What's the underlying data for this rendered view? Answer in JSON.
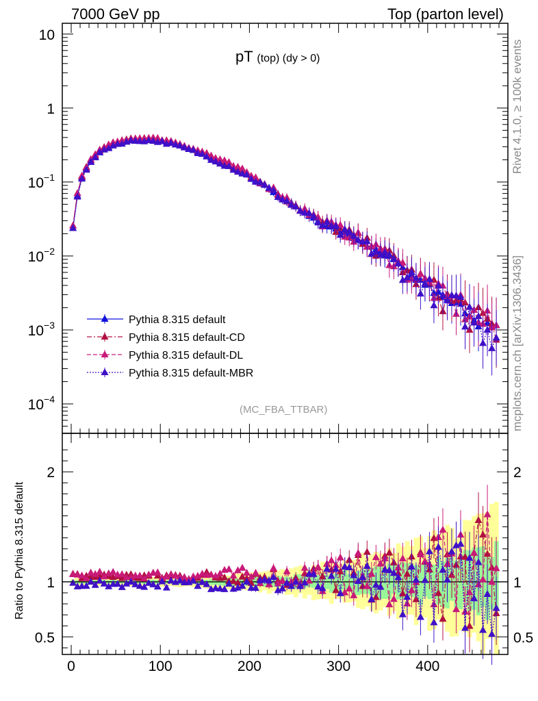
{
  "header": {
    "left": "7000 GeV pp",
    "right": "Top (parton level)"
  },
  "side_labels": {
    "rivet": "Rivet 4.1.0, ≥ 100k events",
    "mcplots": "mcplots.cern.ch [arXiv:1306.3436]"
  },
  "chart_data": {
    "type": "line",
    "title_main": "pT",
    "title_sub": "(top)  (dy > 0)",
    "watermark": "(MC_FBA_TTBAR)",
    "xlabel": "",
    "ylabel": "",
    "ratio_ylabel": "Ratio to Pythia 8.315 default",
    "xlim": [
      -10,
      490
    ],
    "ylim": [
      4e-05,
      14
    ],
    "y_scale": "log",
    "ratio_ylim": [
      0.34,
      2.35
    ],
    "x_ticks": [
      0,
      100,
      200,
      300,
      400
    ],
    "y_ticks": [
      {
        "value": 10,
        "base": "10",
        "exp": ""
      },
      {
        "value": 1,
        "base": "1",
        "exp": ""
      },
      {
        "value": 0.1,
        "base": "10",
        "exp": "−1"
      },
      {
        "value": 0.01,
        "base": "10",
        "exp": "−2"
      },
      {
        "value": 0.001,
        "base": "10",
        "exp": "−3"
      },
      {
        "value": 0.0001,
        "base": "10",
        "exp": "−4"
      }
    ],
    "ratio_ticks": [
      0.5,
      1,
      2
    ],
    "legend_placement": "lower-left",
    "series": [
      {
        "name": "Pythia 8.315 default",
        "color": "#1010dd",
        "dash": "solid",
        "anchors": [
          [
            2,
            0.024
          ],
          [
            7,
            0.066
          ],
          [
            12,
            0.115
          ],
          [
            18,
            0.16
          ],
          [
            25,
            0.21
          ],
          [
            35,
            0.27
          ],
          [
            45,
            0.31
          ],
          [
            55,
            0.34
          ],
          [
            65,
            0.36
          ],
          [
            75,
            0.37
          ],
          [
            85,
            0.37
          ],
          [
            95,
            0.365
          ],
          [
            110,
            0.34
          ],
          [
            125,
            0.3
          ],
          [
            140,
            0.26
          ],
          [
            160,
            0.205
          ],
          [
            180,
            0.16
          ],
          [
            200,
            0.12
          ],
          [
            220,
            0.085
          ],
          [
            240,
            0.058
          ],
          [
            260,
            0.04
          ],
          [
            280,
            0.028
          ],
          [
            300,
            0.022
          ],
          [
            320,
            0.017
          ],
          [
            340,
            0.012
          ],
          [
            360,
            0.009
          ],
          [
            380,
            0.0055
          ],
          [
            400,
            0.004
          ],
          [
            420,
            0.0025
          ],
          [
            440,
            0.002
          ],
          [
            460,
            0.0012
          ],
          [
            480,
            0.001
          ]
        ]
      },
      {
        "name": "Pythia 8.315 default-CD",
        "color": "#b01040",
        "dash": "dashdot",
        "ratio": 1.05
      },
      {
        "name": "Pythia 8.315 default-DL",
        "color": "#c81a78",
        "dash": "dashed",
        "ratio": 1.06
      },
      {
        "name": "Pythia 8.315 default-MBR",
        "color": "#4010c8",
        "dash": "dotted",
        "ratio": 0.98
      }
    ]
  }
}
